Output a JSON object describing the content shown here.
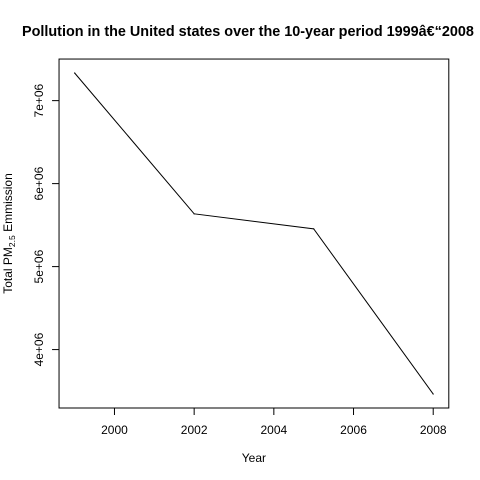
{
  "chart_data": {
    "type": "line",
    "title": "Pollution in the United states over the 10-year period 1999â€“2008",
    "xlabel": "Year",
    "ylabel": {
      "prefix": "Total PM",
      "subscript": "2.5",
      "suffix": " Emmission"
    },
    "x": [
      1999,
      2002,
      2005,
      2008
    ],
    "series": [
      {
        "values": [
          7332967,
          5635780,
          5454703,
          3464206
        ]
      }
    ],
    "xlim": [
      1999,
      2008
    ],
    "ylim": [
      3464206,
      7332967
    ],
    "xticks": [
      2000,
      2002,
      2004,
      2006,
      2008
    ],
    "xtick_labels": [
      "2000",
      "2002",
      "2004",
      "2006",
      "2008"
    ],
    "yticks": [
      4000000,
      5000000,
      6000000,
      7000000
    ],
    "ytick_labels": [
      "4e+06",
      "5e+06",
      "6e+06",
      "7e+06"
    ],
    "grid": false,
    "line_color": "#000000"
  }
}
